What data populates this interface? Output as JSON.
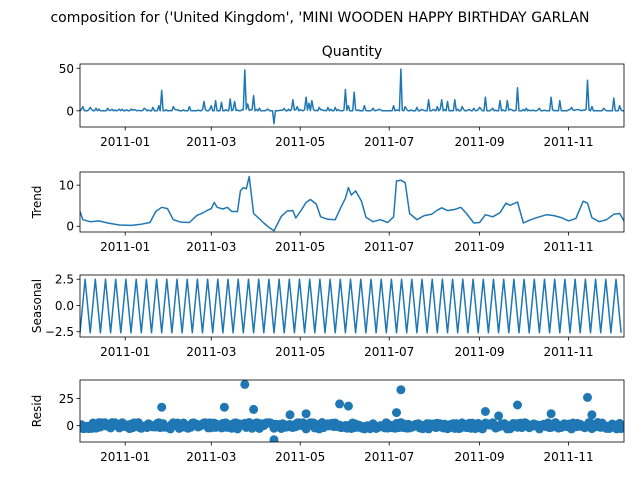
{
  "chart_data": {
    "type": "line",
    "suptitle": "composition for ('United Kingdom', 'MINI WOODEN HAPPY BIRTHDAY GARLAN",
    "color": "#1f77b4",
    "x_tick_labels": [
      "2011-01",
      "2011-03",
      "2011-05",
      "2011-07",
      "2011-09",
      "2011-11"
    ],
    "x_range": [
      "2010-12-01",
      "2011-12-09"
    ],
    "panels": [
      {
        "key": "observed",
        "style": "line",
        "title": "Quantity",
        "ylabel": "",
        "ylim": [
          -19,
          55
        ],
        "y_ticks": [
          0,
          50
        ],
        "y_tick_labels": [
          "0",
          "50"
        ],
        "baseline": 0,
        "spikes": [
          [
            "2010-12-03",
            5
          ],
          [
            "2010-12-08",
            4
          ],
          [
            "2010-12-12",
            3
          ],
          [
            "2010-12-20",
            3
          ],
          [
            "2011-01-05",
            2
          ],
          [
            "2011-01-14",
            3
          ],
          [
            "2011-01-20",
            4
          ],
          [
            "2011-01-24",
            6
          ],
          [
            "2011-01-26",
            24
          ],
          [
            "2011-02-03",
            5
          ],
          [
            "2011-02-14",
            5
          ],
          [
            "2011-02-24",
            11
          ],
          [
            "2011-03-01",
            6
          ],
          [
            "2011-03-04",
            12
          ],
          [
            "2011-03-08",
            10
          ],
          [
            "2011-03-14",
            14
          ],
          [
            "2011-03-17",
            11
          ],
          [
            "2011-03-24",
            48
          ],
          [
            "2011-03-26",
            8
          ],
          [
            "2011-03-30",
            18
          ],
          [
            "2011-04-03",
            3
          ],
          [
            "2011-04-09",
            2
          ],
          [
            "2011-04-13",
            -15
          ],
          [
            "2011-04-20",
            3
          ],
          [
            "2011-04-26",
            13
          ],
          [
            "2011-04-29",
            5
          ],
          [
            "2011-05-05",
            16
          ],
          [
            "2011-05-07",
            9
          ],
          [
            "2011-05-09",
            12
          ],
          [
            "2011-05-14",
            4
          ],
          [
            "2011-05-20",
            4
          ],
          [
            "2011-05-25",
            4
          ],
          [
            "2011-06-01",
            25
          ],
          [
            "2011-06-03",
            6
          ],
          [
            "2011-06-07",
            22
          ],
          [
            "2011-06-14",
            6
          ],
          [
            "2011-06-20",
            3
          ],
          [
            "2011-07-04",
            6
          ],
          [
            "2011-07-09",
            49
          ],
          [
            "2011-07-12",
            5
          ],
          [
            "2011-07-20",
            4
          ],
          [
            "2011-07-28",
            13
          ],
          [
            "2011-08-03",
            5
          ],
          [
            "2011-08-06",
            13
          ],
          [
            "2011-08-10",
            11
          ],
          [
            "2011-08-15",
            13
          ],
          [
            "2011-08-20",
            5
          ],
          [
            "2011-08-28",
            3
          ],
          [
            "2011-09-01",
            4
          ],
          [
            "2011-09-05",
            16
          ],
          [
            "2011-09-10",
            3
          ],
          [
            "2011-09-15",
            12
          ],
          [
            "2011-09-20",
            12
          ],
          [
            "2011-09-27",
            27
          ],
          [
            "2011-10-03",
            3
          ],
          [
            "2011-10-12",
            3
          ],
          [
            "2011-10-20",
            16
          ],
          [
            "2011-10-26",
            12
          ],
          [
            "2011-11-03",
            4
          ],
          [
            "2011-11-14",
            36
          ],
          [
            "2011-11-17",
            5
          ],
          [
            "2011-11-25",
            3
          ],
          [
            "2011-12-02",
            15
          ],
          [
            "2011-12-06",
            6
          ]
        ]
      },
      {
        "key": "trend",
        "style": "line",
        "title": "",
        "ylabel": "Trend",
        "ylim": [
          -1.4,
          13.2
        ],
        "y_ticks": [
          0,
          10
        ],
        "y_tick_labels": [
          "0",
          "10"
        ],
        "points": [
          [
            "2010-12-01",
            3.6
          ],
          [
            "2010-12-03",
            1.6
          ],
          [
            "2010-12-08",
            1.1
          ],
          [
            "2010-12-14",
            1.3
          ],
          [
            "2010-12-20",
            0.8
          ],
          [
            "2010-12-28",
            0.3
          ],
          [
            "2011-01-05",
            0.2
          ],
          [
            "2011-01-12",
            0.5
          ],
          [
            "2011-01-18",
            0.9
          ],
          [
            "2011-01-22",
            3.6
          ],
          [
            "2011-01-26",
            4.6
          ],
          [
            "2011-01-30",
            4.3
          ],
          [
            "2011-02-03",
            1.6
          ],
          [
            "2011-02-08",
            1.0
          ],
          [
            "2011-02-14",
            0.9
          ],
          [
            "2011-02-19",
            2.6
          ],
          [
            "2011-02-23",
            3.2
          ],
          [
            "2011-02-26",
            3.8
          ],
          [
            "2011-03-01",
            4.3
          ],
          [
            "2011-03-03",
            5.8
          ],
          [
            "2011-03-05",
            4.6
          ],
          [
            "2011-03-09",
            4.2
          ],
          [
            "2011-03-12",
            4.6
          ],
          [
            "2011-03-15",
            3.6
          ],
          [
            "2011-03-19",
            3.6
          ],
          [
            "2011-03-21",
            8.6
          ],
          [
            "2011-03-23",
            9.4
          ],
          [
            "2011-03-25",
            9.1
          ],
          [
            "2011-03-27",
            12.1
          ],
          [
            "2011-03-30",
            3.1
          ],
          [
            "2011-04-03",
            1.8
          ],
          [
            "2011-04-06",
            0.8
          ],
          [
            "2011-04-10",
            -0.4
          ],
          [
            "2011-04-13",
            -1.1
          ],
          [
            "2011-04-18",
            2.4
          ],
          [
            "2011-04-22",
            3.7
          ],
          [
            "2011-04-26",
            3.8
          ],
          [
            "2011-04-28",
            2.0
          ],
          [
            "2011-05-02",
            4.1
          ],
          [
            "2011-05-05",
            5.8
          ],
          [
            "2011-05-08",
            6.5
          ],
          [
            "2011-05-12",
            5.4
          ],
          [
            "2011-05-15",
            2.3
          ],
          [
            "2011-05-20",
            1.7
          ],
          [
            "2011-05-25",
            1.6
          ],
          [
            "2011-05-29",
            4.7
          ],
          [
            "2011-06-01",
            6.8
          ],
          [
            "2011-06-03",
            9.4
          ],
          [
            "2011-06-05",
            7.6
          ],
          [
            "2011-06-08",
            8.6
          ],
          [
            "2011-06-12",
            6.1
          ],
          [
            "2011-06-15",
            2.2
          ],
          [
            "2011-06-20",
            1.1
          ],
          [
            "2011-06-25",
            1.6
          ],
          [
            "2011-06-30",
            0.9
          ],
          [
            "2011-07-04",
            2.3
          ],
          [
            "2011-07-06",
            11.0
          ],
          [
            "2011-07-09",
            11.2
          ],
          [
            "2011-07-12",
            10.6
          ],
          [
            "2011-07-15",
            3.1
          ],
          [
            "2011-07-20",
            1.6
          ],
          [
            "2011-07-25",
            2.6
          ],
          [
            "2011-07-30",
            2.9
          ],
          [
            "2011-08-03",
            3.9
          ],
          [
            "2011-08-06",
            4.5
          ],
          [
            "2011-08-10",
            3.8
          ],
          [
            "2011-08-15",
            4.1
          ],
          [
            "2011-08-19",
            4.6
          ],
          [
            "2011-08-23",
            3.1
          ],
          [
            "2011-08-28",
            0.8
          ],
          [
            "2011-09-01",
            0.9
          ],
          [
            "2011-09-05",
            2.8
          ],
          [
            "2011-09-10",
            2.3
          ],
          [
            "2011-09-15",
            3.3
          ],
          [
            "2011-09-19",
            5.6
          ],
          [
            "2011-09-22",
            5.1
          ],
          [
            "2011-09-27",
            5.9
          ],
          [
            "2011-10-01",
            0.8
          ],
          [
            "2011-10-06",
            1.6
          ],
          [
            "2011-10-12",
            2.3
          ],
          [
            "2011-10-17",
            2.8
          ],
          [
            "2011-10-22",
            2.6
          ],
          [
            "2011-10-27",
            2.1
          ],
          [
            "2011-11-01",
            1.3
          ],
          [
            "2011-11-06",
            1.9
          ],
          [
            "2011-11-11",
            6.1
          ],
          [
            "2011-11-14",
            5.6
          ],
          [
            "2011-11-17",
            2.1
          ],
          [
            "2011-11-22",
            1.1
          ],
          [
            "2011-11-27",
            1.6
          ],
          [
            "2011-12-02",
            2.9
          ],
          [
            "2011-12-06",
            3.1
          ],
          [
            "2011-12-09",
            1.3
          ]
        ]
      },
      {
        "key": "seasonal",
        "style": "oscillation",
        "title": "",
        "ylabel": "Seasonal",
        "ylim": [
          -3.0,
          2.9
        ],
        "y_ticks": [
          -2.5,
          0.0,
          2.5
        ],
        "y_tick_labels": [
          "−2.5",
          "0.0",
          "2.5"
        ],
        "period_days": 7,
        "amplitude": [
          -2.6,
          2.5
        ]
      },
      {
        "key": "resid",
        "style": "scatter",
        "title": "",
        "ylabel": "Resid",
        "ylim": [
          -15,
          42
        ],
        "y_ticks": [
          0,
          25
        ],
        "y_tick_labels": [
          "0",
          "25"
        ],
        "outliers": [
          [
            "2011-01-26",
            17
          ],
          [
            "2011-03-10",
            17
          ],
          [
            "2011-03-24",
            38
          ],
          [
            "2011-03-30",
            15
          ],
          [
            "2011-04-13",
            -13
          ],
          [
            "2011-04-24",
            10
          ],
          [
            "2011-05-05",
            11
          ],
          [
            "2011-05-28",
            20
          ],
          [
            "2011-06-03",
            18
          ],
          [
            "2011-07-06",
            12
          ],
          [
            "2011-07-09",
            33
          ],
          [
            "2011-09-05",
            13
          ],
          [
            "2011-09-14",
            9
          ],
          [
            "2011-09-27",
            19
          ],
          [
            "2011-10-20",
            11
          ],
          [
            "2011-11-14",
            26
          ],
          [
            "2011-11-17",
            10
          ]
        ]
      }
    ]
  }
}
